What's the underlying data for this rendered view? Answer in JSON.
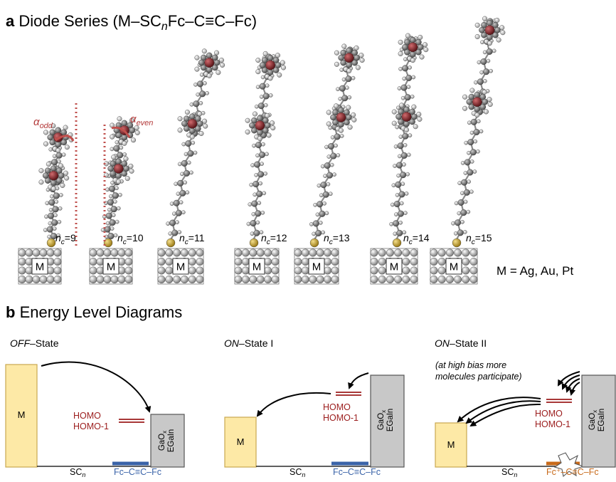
{
  "panel_a": {
    "letter": "a",
    "title_lead": "Diode Series (M–SC",
    "title_n": "n",
    "title_tail": "Fc–C≡C–Fc)",
    "metal_label": "M",
    "metal_list": "M = Ag, Au, Pt",
    "alpha_symbol": "α",
    "alpha_odd_sub": "odd",
    "alpha_even_sub": "even",
    "molecules": [
      {
        "n_symbol": "n",
        "n_sub": "c",
        "n_value": "=9"
      },
      {
        "n_symbol": "n",
        "n_sub": "c",
        "n_value": "=10"
      },
      {
        "n_symbol": "n",
        "n_sub": "c",
        "n_value": "=11"
      },
      {
        "n_symbol": "n",
        "n_sub": "c",
        "n_value": "=12"
      },
      {
        "n_symbol": "n",
        "n_sub": "c",
        "n_value": "=13"
      },
      {
        "n_symbol": "n",
        "n_sub": "c",
        "n_value": "=14"
      },
      {
        "n_symbol": "n",
        "n_sub": "c",
        "n_value": "=15"
      }
    ]
  },
  "panel_b": {
    "letter": "b",
    "title": "Energy Level Diagrams",
    "off_state": {
      "title_italic": "OFF",
      "title_rest": "–State",
      "metal": "M",
      "homo": "HOMO",
      "homo1": "HOMO-1",
      "electrode_l1": "GaO",
      "electrode_sub": "x",
      "electrode_l2": "EGaIn",
      "sc_main": "SC",
      "sc_sub": "n",
      "fc_label": "Fc–C≡C–Fc"
    },
    "on_state_1": {
      "title_italic": "ON",
      "title_rest": "–State I",
      "metal": "M",
      "homo": "HOMO",
      "homo1": "HOMO-1",
      "electrode_l1": "GaO",
      "electrode_sub": "x",
      "electrode_l2": "EGaIn",
      "sc_main": "SC",
      "sc_sub": "n",
      "fc_label": "Fc–C≡C–Fc"
    },
    "on_state_2": {
      "title_italic": "ON",
      "title_rest": "–State II",
      "note_line1": "(at high bias more",
      "note_line2": "molecules participate)",
      "metal": "M",
      "homo": "HOMO",
      "homo1": "HOMO-1",
      "electrode_l1": "GaO",
      "electrode_sub": "x",
      "electrode_l2": "EGaIn",
      "sc_main": "SC",
      "sc_sub": "n",
      "fc_label": "Fc⁺–C≡C–Fc"
    }
  },
  "colors": {
    "metal_fill": "#fde9a6",
    "metal_stroke": "#c9a850",
    "electrode_fill": "#c8c8c8",
    "electrode_stroke": "#555555",
    "homo_red": "#9b1c1c",
    "fc_blue": "#3a63a8",
    "fc_orange": "#c86a1a",
    "alpha_red": "#b33a3a",
    "atom_carbon": "#6f6f6f",
    "atom_hydrogen": "#d0d0d0",
    "atom_iron": "#7a1f23",
    "atom_sulfur": "#c7a233",
    "substrate_atom": "#cfcfcf"
  }
}
